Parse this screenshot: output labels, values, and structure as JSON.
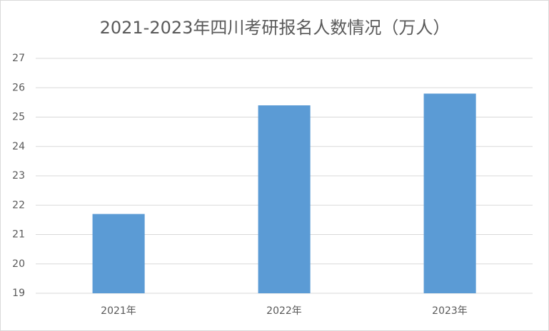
{
  "chart_data": {
    "type": "bar",
    "title": "2021-2023年四川考研报名人数情况（万人）",
    "categories": [
      "2021年",
      "2022年",
      "2023年"
    ],
    "values": [
      21.7,
      25.4,
      25.8
    ],
    "color": "#5b9bd5",
    "ylim": [
      19,
      27
    ],
    "yticks": [
      19,
      20,
      21,
      22,
      23,
      24,
      25,
      26,
      27
    ],
    "grid": true
  }
}
